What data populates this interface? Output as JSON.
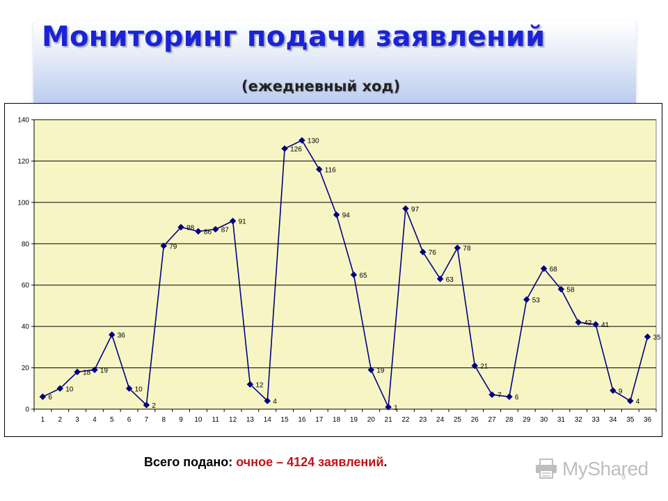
{
  "slide": {
    "title": "Мониторинг подачи заявлений",
    "subtitle": "(ежедневный ход)",
    "footer_prefix": "Всего подано: ",
    "footer_highlight": "очное – 4124 заявлений",
    "footer_suffix": ".",
    "watermark": "MyShared",
    "watermark_icon": "printer-logo-icon",
    "slide_number": "9"
  },
  "colors": {
    "title": "#1a24d6",
    "plot_background": "#f7f5c4",
    "line": "#000080",
    "marker": "#000080",
    "gridline": "#000000",
    "footer_highlight": "#c0141a"
  },
  "chart_data": {
    "type": "line",
    "categories": [
      "1",
      "2",
      "3",
      "4",
      "5",
      "6",
      "7",
      "8",
      "9",
      "10",
      "11",
      "12",
      "13",
      "14",
      "15",
      "16",
      "17",
      "18",
      "19",
      "20",
      "21",
      "22",
      "23",
      "24",
      "25",
      "26",
      "27",
      "28",
      "29",
      "30",
      "31",
      "32",
      "33",
      "34",
      "35",
      "36"
    ],
    "values": [
      6,
      10,
      18,
      19,
      36,
      10,
      2,
      79,
      88,
      86,
      87,
      91,
      12,
      4,
      126,
      130,
      116,
      94,
      65,
      19,
      1,
      97,
      76,
      63,
      78,
      21,
      7,
      6,
      53,
      68,
      58,
      42,
      41,
      9,
      4,
      35
    ],
    "data_labels": [
      "6",
      "10",
      "18",
      "19",
      "36",
      "10",
      "2",
      "79",
      "88",
      "86",
      "87",
      "91",
      "12",
      "4",
      "126",
      "130",
      "116",
      "94",
      "65",
      "19",
      "1",
      "97",
      "76",
      "63",
      "78",
      "21",
      "7",
      "6",
      "53",
      "68",
      "58",
      "42",
      "41",
      "9",
      "4",
      "35"
    ],
    "y_ticks": [
      "0",
      "20",
      "40",
      "60",
      "80",
      "100",
      "120",
      "140"
    ],
    "ylim": [
      0,
      140
    ],
    "grid": true,
    "legend": false,
    "marker": "diamond"
  }
}
